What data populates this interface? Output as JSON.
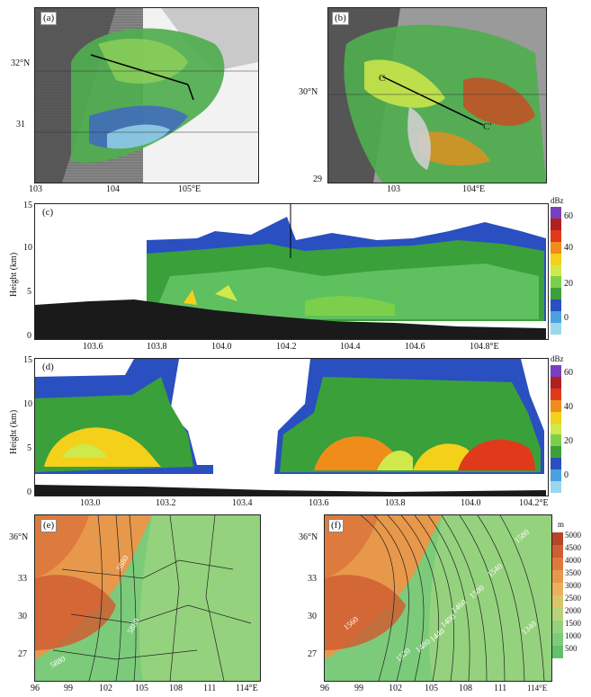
{
  "panel_a": {
    "label": "(a)",
    "xticks": [
      "103",
      "104",
      "105°E"
    ],
    "yticks": [
      "32°N",
      "31"
    ]
  },
  "panel_b": {
    "label": "(b)",
    "xticks": [
      "103",
      "104°E"
    ],
    "yticks": [
      "30°N",
      "29"
    ],
    "markers": [
      "C",
      "C′"
    ]
  },
  "panel_c": {
    "label": "(c)",
    "ylabel": "Height (km)",
    "yticks": [
      "15",
      "10",
      "5",
      "0"
    ],
    "xticks": [
      "103.6",
      "103.8",
      "104.0",
      "104.2",
      "104.4",
      "104.6",
      "104.8°E"
    ]
  },
  "panel_d": {
    "label": "(d)",
    "ylabel": "Height (km)",
    "yticks": [
      "15",
      "10",
      "5",
      "0"
    ],
    "xticks": [
      "103.0",
      "103.2",
      "103.4",
      "103.6",
      "103.8",
      "104.0",
      "104.2°E"
    ]
  },
  "dbz_bar": {
    "unit": "dBz",
    "ticks": [
      "60",
      "40",
      "20",
      "0"
    ],
    "colors": [
      "#7a3fc0",
      "#b02020",
      "#e03a1a",
      "#f08c1a",
      "#f4d01a",
      "#cfe84a",
      "#7ccf4a",
      "#3aa03a",
      "#2a4fc0",
      "#4aa0e0",
      "#9ad8ec"
    ]
  },
  "panel_e": {
    "label": "(e)",
    "xticks": [
      "96",
      "99",
      "102",
      "105",
      "108",
      "111",
      "114°E"
    ],
    "yticks": [
      "36°N",
      "33",
      "30",
      "27"
    ],
    "contour_labels": [
      "5880",
      "5880",
      "5880"
    ]
  },
  "panel_f": {
    "label": "(f)",
    "xticks": [
      "96",
      "99",
      "102",
      "105",
      "108",
      "111",
      "114°E"
    ],
    "yticks": [
      "36°N",
      "33",
      "30",
      "27"
    ],
    "contour_labels": [
      "1560",
      "1520",
      "1480",
      "1440",
      "1400",
      "1460",
      "1500",
      "1540",
      "1580",
      "1340"
    ]
  },
  "terrain_bar": {
    "unit": "m",
    "ticks": [
      "5000",
      "4500",
      "4000",
      "3500",
      "3000",
      "2500",
      "2000",
      "1500",
      "1000",
      "500"
    ],
    "colors": [
      "#b8442a",
      "#cf5e33",
      "#dd7b3e",
      "#e7984b",
      "#eab15c",
      "#d9c56a",
      "#b9d27a",
      "#95d27e",
      "#7ccb7a",
      "#62c06e"
    ]
  }
}
